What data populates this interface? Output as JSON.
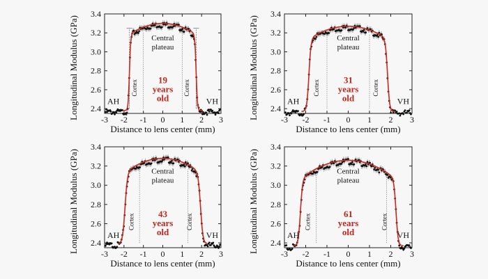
{
  "figure": {
    "background": "#f7f7f7",
    "curve_color": "#c8281e",
    "marker_color": "#111111",
    "age_color": "#c0261b"
  },
  "chart_data": [
    {
      "type": "scatter",
      "xlabel": "Distance to lens center (mm)",
      "ylabel": "Longitudinal Modulus (GPa)",
      "xlim": [
        -3,
        3
      ],
      "ylim": [
        2.35,
        3.4
      ],
      "xticks": [
        "-3",
        "-2",
        "-1",
        "0",
        "1",
        "2",
        "3"
      ],
      "yticks": [
        "2.4",
        "2.6",
        "2.8",
        "3.0",
        "3.2",
        "3.4"
      ],
      "age": [
        "19",
        "years",
        "old"
      ],
      "region_labels": {
        "left": "AH",
        "right": "VH",
        "cortex": "Cortex",
        "plateau": [
          "Central",
          "plateau"
        ]
      },
      "baseline": 2.38,
      "plateau": 3.3,
      "left_edge": -1.72,
      "right_edge": 1.72,
      "edge_width": 0.2,
      "boundaries": [
        -1.72,
        -1.0,
        1.0,
        1.72
      ],
      "markers": [
        {
          "x": -1.72,
          "y": 3.25,
          "dotted": true
        },
        {
          "x": 1.72,
          "y": 3.25,
          "dotted": true
        }
      ]
    },
    {
      "type": "scatter",
      "xlabel": "Distance to lens center (mm)",
      "ylabel": "Longitudinal Modulus (GPa)",
      "xlim": [
        -3,
        3
      ],
      "ylim": [
        2.35,
        3.4
      ],
      "xticks": [
        "-3",
        "-2",
        "-1",
        "0",
        "1",
        "2",
        "3"
      ],
      "yticks": [
        "2.4",
        "2.6",
        "2.8",
        "3.0",
        "3.2",
        "3.4"
      ],
      "age": [
        "31",
        "years",
        "old"
      ],
      "region_labels": {
        "left": "AH",
        "right": "VH",
        "cortex": "Cortex",
        "plateau": [
          "Central",
          "plateau"
        ]
      },
      "baseline": 2.37,
      "plateau": 3.27,
      "left_edge": -1.85,
      "right_edge": 1.85,
      "edge_width": 0.3,
      "boundaries": [
        -1.0,
        1.0
      ],
      "markers": []
    },
    {
      "type": "scatter",
      "xlabel": "Distance to lens center (mm)",
      "ylabel": "Longitudinal Modulus (GPa)",
      "xlim": [
        -3,
        3
      ],
      "ylim": [
        2.35,
        3.4
      ],
      "xticks": [
        "-3",
        "-2",
        "-1",
        "0",
        "1",
        "2",
        "3"
      ],
      "yticks": [
        "2.4",
        "2.6",
        "2.8",
        "3.0",
        "3.2",
        "3.4"
      ],
      "age": [
        "43",
        "years",
        "old"
      ],
      "region_labels": {
        "left": "AH",
        "right": "VH",
        "cortex": "Cortex",
        "plateau": [
          "Central",
          "plateau"
        ]
      },
      "baseline": 2.39,
      "plateau": 3.28,
      "left_edge": -1.95,
      "right_edge": 1.95,
      "edge_width": 0.38,
      "boundaries": [
        -1.2,
        1.3
      ],
      "markers": []
    },
    {
      "type": "scatter",
      "xlabel": "Distance to lens center (mm)",
      "ylabel": "Longitudinal Modulus (GPa)",
      "xlim": [
        -3,
        3
      ],
      "ylim": [
        2.35,
        3.4
      ],
      "xticks": [
        "-3",
        "-2",
        "-1",
        "0",
        "1",
        "2",
        "3"
      ],
      "yticks": [
        "2.4",
        "2.6",
        "2.8",
        "3.0",
        "3.2",
        "3.4"
      ],
      "age": [
        "61",
        "years",
        "old"
      ],
      "region_labels": {
        "left": "AH",
        "right": "VH",
        "cortex": "Cortex",
        "plateau": [
          "Central",
          "plateau"
        ]
      },
      "baseline": 2.37,
      "plateau": 3.26,
      "left_edge": -2.25,
      "right_edge": 2.25,
      "edge_width": 0.3,
      "boundaries": [
        -1.5,
        1.8
      ],
      "markers": []
    }
  ]
}
